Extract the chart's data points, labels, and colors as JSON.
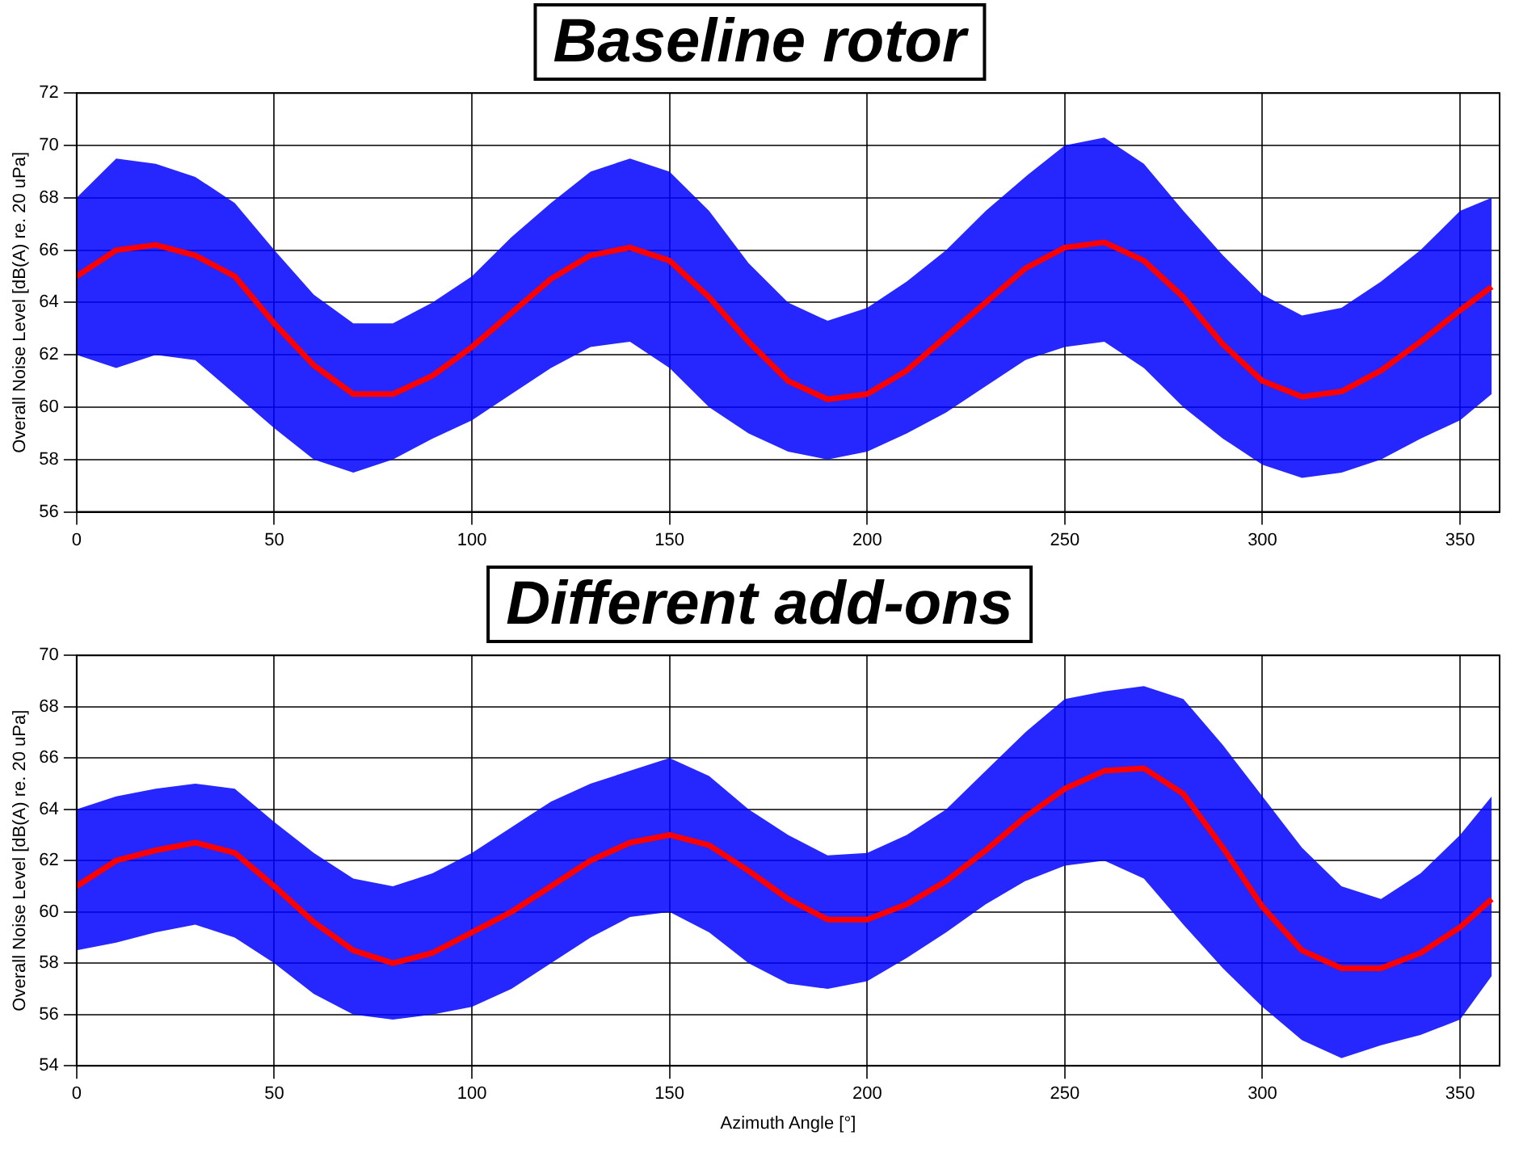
{
  "chart_data": [
    {
      "type": "line",
      "title": "Baseline rotor",
      "ylabel": "Overall Noise Level [dB(A) re. 20 uPa]",
      "grid": true,
      "legend": false,
      "marker": "none",
      "line_style": "solid",
      "x": [
        0,
        10,
        20,
        30,
        40,
        50,
        60,
        70,
        80,
        90,
        100,
        110,
        120,
        130,
        140,
        150,
        160,
        170,
        180,
        190,
        200,
        210,
        220,
        230,
        240,
        250,
        260,
        270,
        280,
        290,
        300,
        310,
        320,
        330,
        340,
        350,
        358
      ],
      "xlim": [
        0,
        360
      ],
      "xticks": [
        0,
        50,
        100,
        150,
        200,
        250,
        300,
        350
      ],
      "ylim": [
        56,
        72
      ],
      "yticks": [
        56,
        58,
        60,
        62,
        64,
        66,
        68,
        70,
        72
      ],
      "series": [
        {
          "color": "#ff0000",
          "values": [
            65,
            66,
            66.2,
            65.8,
            65,
            63.2,
            61.6,
            60.5,
            60.5,
            61.2,
            62.3,
            63.6,
            64.9,
            65.8,
            66.1,
            65.6,
            64.2,
            62.5,
            61,
            60.3,
            60.5,
            61.4,
            62.7,
            64,
            65.3,
            66.1,
            66.3,
            65.6,
            64.2,
            62.4,
            61,
            60.4,
            60.6,
            61.4,
            62.5,
            63.7,
            64.6
          ],
          "upper": [
            68,
            69.5,
            69.3,
            68.8,
            67.8,
            66,
            64.3,
            63.2,
            63.2,
            64,
            65,
            66.5,
            67.8,
            69,
            69.5,
            69,
            67.5,
            65.5,
            64,
            63.3,
            63.8,
            64.8,
            66,
            67.5,
            68.8,
            70,
            70.3,
            69.3,
            67.5,
            65.8,
            64.3,
            63.5,
            63.8,
            64.8,
            66,
            67.5,
            68
          ],
          "lower": [
            62,
            61.5,
            62,
            61.8,
            60.5,
            59.2,
            58,
            57.5,
            58,
            58.8,
            59.5,
            60.5,
            61.5,
            62.3,
            62.5,
            61.5,
            60,
            59,
            58.3,
            58,
            58.3,
            59,
            59.8,
            60.8,
            61.8,
            62.3,
            62.5,
            61.5,
            60,
            58.8,
            57.8,
            57.3,
            57.5,
            58,
            58.8,
            59.5,
            60.5
          ]
        }
      ]
    },
    {
      "type": "line",
      "title": "Different add-ons",
      "xlabel": "Azimuth Angle [°]",
      "ylabel": "Overall Noise Level [dB(A) re. 20 uPa]",
      "grid": true,
      "legend": false,
      "marker": "none",
      "line_style": "solid",
      "x": [
        0,
        10,
        20,
        30,
        40,
        50,
        60,
        70,
        80,
        90,
        100,
        110,
        120,
        130,
        140,
        150,
        160,
        170,
        180,
        190,
        200,
        210,
        220,
        230,
        240,
        250,
        260,
        270,
        280,
        290,
        300,
        310,
        320,
        330,
        340,
        350,
        358
      ],
      "xlim": [
        0,
        360
      ],
      "xticks": [
        0,
        50,
        100,
        150,
        200,
        250,
        300,
        350
      ],
      "ylim": [
        54,
        70
      ],
      "yticks": [
        54,
        56,
        58,
        60,
        62,
        64,
        66,
        68,
        70
      ],
      "series": [
        {
          "color": "#ff0000",
          "values": [
            61,
            62,
            62.4,
            62.7,
            62.3,
            61,
            59.6,
            58.5,
            58,
            58.4,
            59.2,
            60,
            61,
            62,
            62.7,
            63,
            62.6,
            61.6,
            60.5,
            59.7,
            59.7,
            60.3,
            61.2,
            62.4,
            63.7,
            64.8,
            65.5,
            65.6,
            64.6,
            62.5,
            60.2,
            58.5,
            57.8,
            57.8,
            58.4,
            59.4,
            60.5
          ],
          "upper": [
            64,
            64.5,
            64.8,
            65,
            64.8,
            63.5,
            62.3,
            61.3,
            61,
            61.5,
            62.3,
            63.3,
            64.3,
            65,
            65.5,
            66,
            65.3,
            64,
            63,
            62.2,
            62.3,
            63,
            64,
            65.5,
            67,
            68.3,
            68.6,
            68.8,
            68.3,
            66.5,
            64.5,
            62.5,
            61,
            60.5,
            61.5,
            63,
            64.5
          ],
          "lower": [
            58.5,
            58.8,
            59.2,
            59.5,
            59,
            58,
            56.8,
            56,
            55.8,
            56,
            56.3,
            57,
            58,
            59,
            59.8,
            60,
            59.2,
            58,
            57.2,
            57,
            57.3,
            58.2,
            59.2,
            60.3,
            61.2,
            61.8,
            62,
            61.3,
            59.5,
            57.8,
            56.3,
            55,
            54.3,
            54.8,
            55.2,
            55.8,
            57.5
          ]
        }
      ]
    }
  ]
}
